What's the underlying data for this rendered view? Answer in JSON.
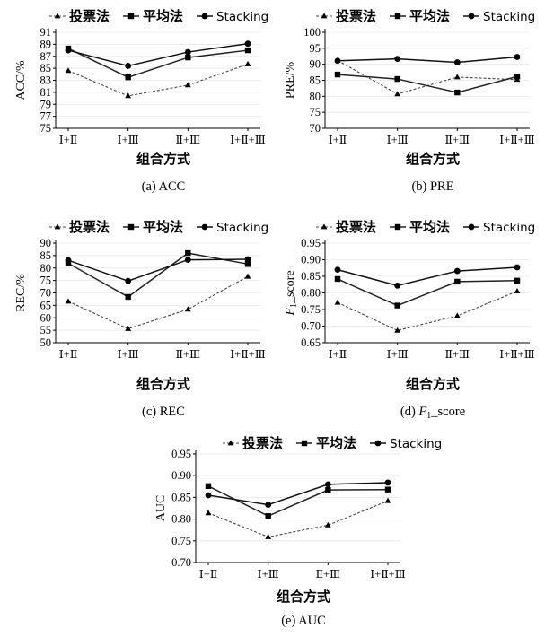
{
  "legend": [
    "投票法",
    "平均法",
    "Stacking"
  ],
  "xaxis_title": "组合方式",
  "chart_data": [
    {
      "type": "line",
      "caption": "(a) ACC",
      "ylabel": "ACC/%",
      "ylim": [
        75,
        91
      ],
      "yticks": [
        75,
        77,
        79,
        81,
        83,
        85,
        87,
        89,
        91
      ],
      "categories": [
        "Ⅰ+Ⅱ",
        "Ⅰ+Ⅲ",
        "Ⅱ+Ⅲ",
        "Ⅰ+Ⅱ+Ⅲ"
      ],
      "series": [
        {
          "name": "投票法",
          "values": [
            84.6,
            80.4,
            82.2,
            85.7
          ]
        },
        {
          "name": "平均法",
          "values": [
            88.3,
            83.5,
            86.8,
            88.0
          ]
        },
        {
          "name": "Stacking",
          "values": [
            88.0,
            85.4,
            87.7,
            89.1
          ]
        }
      ]
    },
    {
      "type": "line",
      "caption": "(b) PRE",
      "ylabel": "PRE/%",
      "ylim": [
        70,
        100
      ],
      "yticks": [
        70,
        75,
        80,
        85,
        90,
        95,
        100
      ],
      "categories": [
        "Ⅰ+Ⅱ",
        "Ⅰ+Ⅲ",
        "Ⅱ+Ⅲ",
        "Ⅰ+Ⅱ+Ⅲ"
      ],
      "series": [
        {
          "name": "投票法",
          "values": [
            91.2,
            80.7,
            86.0,
            85.2
          ]
        },
        {
          "name": "平均法",
          "values": [
            86.8,
            85.4,
            81.2,
            86.2
          ]
        },
        {
          "name": "Stacking",
          "values": [
            91.1,
            91.7,
            90.6,
            92.3
          ]
        }
      ]
    },
    {
      "type": "line",
      "caption": "(c) REC",
      "ylabel": "REC/%",
      "ylim": [
        50,
        90
      ],
      "yticks": [
        50,
        55,
        60,
        65,
        70,
        75,
        80,
        85,
        90
      ],
      "categories": [
        "Ⅰ+Ⅱ",
        "Ⅰ+Ⅲ",
        "Ⅱ+Ⅲ",
        "Ⅰ+Ⅱ+Ⅲ"
      ],
      "series": [
        {
          "name": "投票法",
          "values": [
            66.6,
            55.6,
            63.4,
            76.6
          ]
        },
        {
          "name": "平均法",
          "values": [
            81.9,
            68.4,
            86.0,
            81.6
          ]
        },
        {
          "name": "Stacking",
          "values": [
            83.1,
            74.8,
            83.3,
            83.5
          ]
        }
      ]
    },
    {
      "type": "line",
      "caption": "(d) F1_score",
      "ylabel": "F1_score",
      "ylim": [
        0.65,
        0.95
      ],
      "yticks": [
        0.65,
        0.7,
        0.75,
        0.8,
        0.85,
        0.9,
        0.95
      ],
      "categories": [
        "Ⅰ+Ⅱ",
        "Ⅰ+Ⅲ",
        "Ⅱ+Ⅲ",
        "Ⅰ+Ⅱ+Ⅲ"
      ],
      "series": [
        {
          "name": "投票法",
          "values": [
            0.771,
            0.687,
            0.731,
            0.805
          ]
        },
        {
          "name": "平均法",
          "values": [
            0.842,
            0.762,
            0.834,
            0.837
          ]
        },
        {
          "name": "Stacking",
          "values": [
            0.87,
            0.822,
            0.866,
            0.877
          ]
        }
      ]
    },
    {
      "type": "line",
      "caption": "(e) AUC",
      "ylabel": "AUC",
      "ylim": [
        0.7,
        0.95
      ],
      "yticks": [
        0.7,
        0.75,
        0.8,
        0.85,
        0.9,
        0.95
      ],
      "categories": [
        "Ⅰ+Ⅱ",
        "Ⅰ+Ⅲ",
        "Ⅱ+Ⅲ",
        "Ⅰ+Ⅱ+Ⅲ"
      ],
      "series": [
        {
          "name": "投票法",
          "values": [
            0.814,
            0.759,
            0.786,
            0.842
          ]
        },
        {
          "name": "平均法",
          "values": [
            0.876,
            0.807,
            0.867,
            0.868
          ]
        },
        {
          "name": "Stacking",
          "values": [
            0.855,
            0.833,
            0.88,
            0.884
          ]
        }
      ]
    }
  ]
}
